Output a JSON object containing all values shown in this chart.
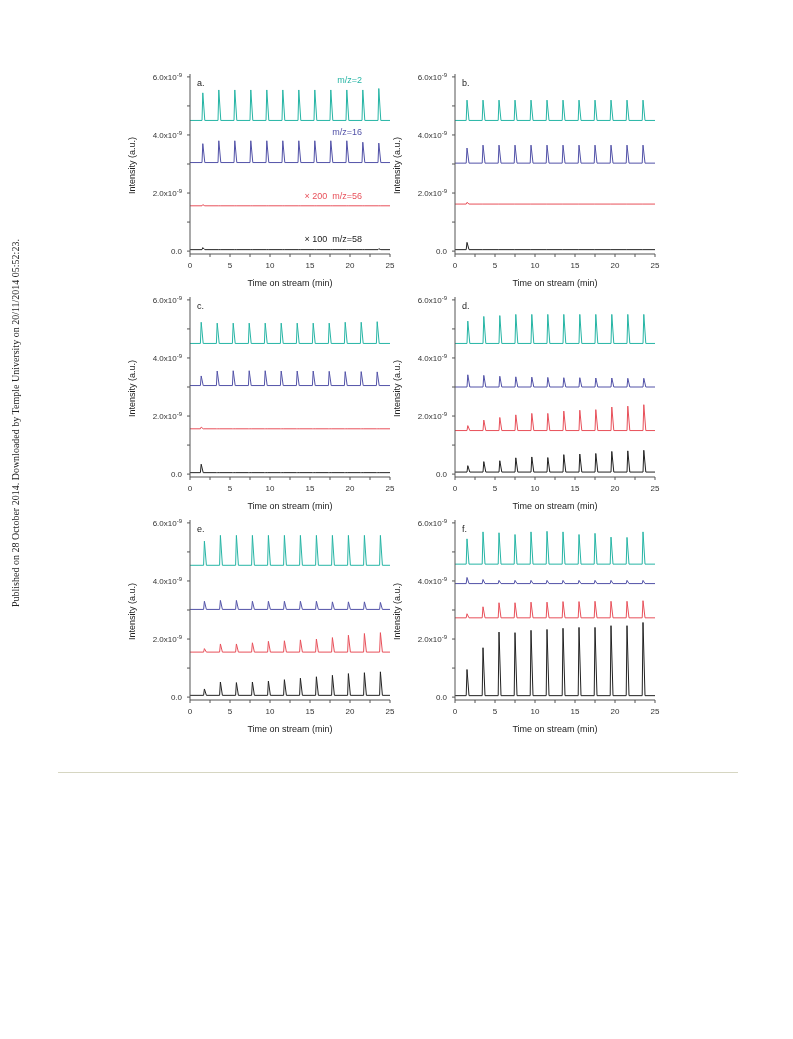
{
  "chart_data": [
    {
      "type": "line",
      "title": "a.",
      "xlabel": "Time on stream (min)",
      "ylabel": "Intensity (a.u.)",
      "marker": "none",
      "line_style": "solid",
      "grid": false,
      "legend": false,
      "annotations": [
        "Published on 28 October 2014. Downloaded by Temple University on 20/11/2014 05:52:23."
      ],
      "xlim": [
        0,
        25
      ],
      "xticks": [
        0,
        {
          "value": 2.5,
          "label": null
        },
        5,
        {
          "value": 7.5,
          "label": null
        },
        10,
        {
          "value": 12.5,
          "label": null
        },
        15,
        {
          "value": 17.5,
          "label": null
        },
        20,
        {
          "value": 22.5,
          "label": null
        },
        25
      ],
      "ylim": [
        -1e-10,
        6.1e-09
      ],
      "yticks": [
        {
          "value": 0,
          "label": "0.0"
        },
        {
          "value": 1e-09,
          "label": null
        },
        {
          "value": 2e-09,
          "label": "2.0x10$^{-9}$"
        },
        {
          "value": 3e-09,
          "label": null
        },
        {
          "value": 4e-09,
          "label": "4.0x10$^{-9}$"
        },
        {
          "value": 5e-09,
          "label": null
        },
        {
          "value": 6e-09,
          "label": "6.0x10$^{-9}$"
        }
      ],
      "x": [
        0,
        1.5,
        1.6,
        1.85,
        3.5,
        3.6,
        3.85,
        5.5,
        5.6,
        5.85,
        7.5,
        7.6,
        7.85,
        9.5,
        9.6,
        9.85,
        11.5,
        11.6,
        11.85,
        13.5,
        13.6,
        13.85,
        15.5,
        15.6,
        15.85,
        17.5,
        17.6,
        17.85,
        19.5,
        19.6,
        19.85,
        21.5,
        21.6,
        21.85,
        23.5,
        23.6,
        23.85,
        25
      ],
      "series": [
        {
          "name": "m/z=2",
          "color": "#26b5a5",
          "values": [
            4.5e-09,
            4.5e-09,
            5.45e-09,
            4.5e-09,
            4.5e-09,
            5.55e-09,
            4.5e-09,
            4.5e-09,
            5.55e-09,
            4.5e-09,
            4.5e-09,
            5.55e-09,
            4.5e-09,
            4.5e-09,
            5.55e-09,
            4.5e-09,
            4.5e-09,
            5.55e-09,
            4.5e-09,
            4.5e-09,
            5.55e-09,
            4.5e-09,
            4.5e-09,
            5.55e-09,
            4.5e-09,
            4.5e-09,
            5.55e-09,
            4.5e-09,
            4.5e-09,
            5.55e-09,
            4.5e-09,
            4.5e-09,
            5.55e-09,
            4.5e-09,
            4.5e-09,
            5.6e-09,
            4.5e-09,
            4.5e-09
          ]
        },
        {
          "name": "m/z=16",
          "color": "#5252a8",
          "values": [
            3.05e-09,
            3.05e-09,
            3.7e-09,
            3.05e-09,
            3.05e-09,
            3.8e-09,
            3.05e-09,
            3.05e-09,
            3.8e-09,
            3.05e-09,
            3.05e-09,
            3.8e-09,
            3.05e-09,
            3.05e-09,
            3.8e-09,
            3.05e-09,
            3.05e-09,
            3.8e-09,
            3.05e-09,
            3.05e-09,
            3.8e-09,
            3.05e-09,
            3.05e-09,
            3.8e-09,
            3.05e-09,
            3.05e-09,
            3.8e-09,
            3.05e-09,
            3.05e-09,
            3.8e-09,
            3.05e-09,
            3.05e-09,
            3.75e-09,
            3.05e-09,
            3.05e-09,
            3.72e-09,
            3.05e-09,
            3.05e-09
          ]
        },
        {
          "name": "× 200  m/z=56",
          "color": "#e8505a",
          "values": [
            1.56e-09,
            1.56e-09,
            1.6e-09,
            1.56e-09,
            1.56e-09,
            1.56e-09,
            1.56e-09,
            1.56e-09,
            1.56e-09,
            1.56e-09,
            1.56e-09,
            1.56e-09,
            1.56e-09,
            1.56e-09,
            1.56e-09,
            1.56e-09,
            1.56e-09,
            1.56e-09,
            1.56e-09,
            1.56e-09,
            1.56e-09,
            1.56e-09,
            1.56e-09,
            1.56e-09,
            1.56e-09,
            1.56e-09,
            1.56e-09,
            1.56e-09,
            1.56e-09,
            1.56e-09,
            1.56e-09,
            1.56e-09,
            1.56e-09,
            1.56e-09,
            1.56e-09,
            1.56e-09,
            1.56e-09,
            1.56e-09
          ]
        },
        {
          "name": "× 100  m/z=58",
          "color": "#222222",
          "values": [
            5e-11,
            5e-11,
            1.2e-10,
            5e-11,
            5e-11,
            5e-11,
            5e-11,
            5e-11,
            5e-11,
            5e-11,
            5e-11,
            5e-11,
            5e-11,
            5e-11,
            5e-11,
            5e-11,
            5e-11,
            5e-11,
            5e-11,
            5e-11,
            5e-11,
            5e-11,
            5e-11,
            5e-11,
            5e-11,
            5e-11,
            5e-11,
            5e-11,
            5e-11,
            5e-11,
            5e-11,
            5e-11,
            5e-11,
            5e-11,
            5e-11,
            8e-11,
            5e-11,
            5e-11
          ]
        }
      ]
    },
    {
      "type": "line",
      "title": "b.",
      "xlabel": "Time on stream (min)",
      "ylabel": "Intensity (a.u.)",
      "marker": "none",
      "line_style": "solid",
      "grid": false,
      "legend": false,
      "xlim": [
        0,
        25
      ],
      "xticks": [
        0,
        {
          "value": 2.5,
          "label": null
        },
        5,
        {
          "value": 7.5,
          "label": null
        },
        10,
        {
          "value": 12.5,
          "label": null
        },
        15,
        {
          "value": 17.5,
          "label": null
        },
        20,
        {
          "value": 22.5,
          "label": null
        },
        25
      ],
      "ylim": [
        -1e-10,
        6.1e-09
      ],
      "yticks": [
        {
          "value": 0,
          "label": "0.0"
        },
        {
          "value": 1e-09,
          "label": null
        },
        {
          "value": 2e-09,
          "label": "2.0x10$^{-9}$"
        },
        {
          "value": 3e-09,
          "label": null
        },
        {
          "value": 4e-09,
          "label": "4.0x10$^{-9}$"
        },
        {
          "value": 5e-09,
          "label": null
        },
        {
          "value": 6e-09,
          "label": "6.0x10$^{-9}$"
        }
      ],
      "x": [
        0,
        1.4,
        1.5,
        1.75,
        3.4,
        3.5,
        3.75,
        5.4,
        5.5,
        5.75,
        7.4,
        7.5,
        7.75,
        9.4,
        9.5,
        9.75,
        11.4,
        11.5,
        11.75,
        13.4,
        13.5,
        13.75,
        15.4,
        15.5,
        15.75,
        17.4,
        17.5,
        17.75,
        19.4,
        19.5,
        19.75,
        21.4,
        21.5,
        21.75,
        23.4,
        23.5,
        23.75,
        25
      ],
      "series": [
        {
          "color": "#26b5a5",
          "values": [
            4.5e-09,
            4.5e-09,
            5.2e-09,
            4.5e-09,
            4.5e-09,
            5.2e-09,
            4.5e-09,
            4.5e-09,
            5.2e-09,
            4.5e-09,
            4.5e-09,
            5.2e-09,
            4.5e-09,
            4.5e-09,
            5.2e-09,
            4.5e-09,
            4.5e-09,
            5.2e-09,
            4.5e-09,
            4.5e-09,
            5.2e-09,
            4.5e-09,
            4.5e-09,
            5.2e-09,
            4.5e-09,
            4.5e-09,
            5.2e-09,
            4.5e-09,
            4.5e-09,
            5.2e-09,
            4.5e-09,
            4.5e-09,
            5.2e-09,
            4.5e-09,
            4.5e-09,
            5.2e-09,
            4.5e-09,
            4.5e-09
          ]
        },
        {
          "color": "#5252a8",
          "values": [
            3.03e-09,
            3.03e-09,
            3.55e-09,
            3.03e-09,
            3.03e-09,
            3.65e-09,
            3.03e-09,
            3.03e-09,
            3.65e-09,
            3.03e-09,
            3.03e-09,
            3.65e-09,
            3.03e-09,
            3.03e-09,
            3.65e-09,
            3.03e-09,
            3.03e-09,
            3.65e-09,
            3.03e-09,
            3.03e-09,
            3.65e-09,
            3.03e-09,
            3.03e-09,
            3.65e-09,
            3.03e-09,
            3.03e-09,
            3.65e-09,
            3.03e-09,
            3.03e-09,
            3.65e-09,
            3.03e-09,
            3.03e-09,
            3.65e-09,
            3.03e-09,
            3.03e-09,
            3.65e-09,
            3.03e-09,
            3.03e-09
          ]
        },
        {
          "color": "#e8505a",
          "values": [
            1.62e-09,
            1.62e-09,
            1.68e-09,
            1.62e-09,
            1.62e-09,
            1.62e-09,
            1.62e-09,
            1.62e-09,
            1.62e-09,
            1.62e-09,
            1.62e-09,
            1.62e-09,
            1.62e-09,
            1.62e-09,
            1.62e-09,
            1.62e-09,
            1.62e-09,
            1.62e-09,
            1.62e-09,
            1.62e-09,
            1.62e-09,
            1.62e-09,
            1.62e-09,
            1.62e-09,
            1.62e-09,
            1.62e-09,
            1.62e-09,
            1.62e-09,
            1.62e-09,
            1.62e-09,
            1.62e-09,
            1.62e-09,
            1.62e-09,
            1.62e-09,
            1.62e-09,
            1.62e-09,
            1.62e-09,
            1.62e-09
          ]
        },
        {
          "color": "#222222",
          "values": [
            5e-11,
            5e-11,
            3e-10,
            5e-11,
            5e-11,
            5e-11,
            5e-11,
            5e-11,
            5e-11,
            5e-11,
            5e-11,
            5e-11,
            5e-11,
            5e-11,
            5e-11,
            5e-11,
            5e-11,
            5e-11,
            5e-11,
            5e-11,
            5e-11,
            5e-11,
            5e-11,
            5e-11,
            5e-11,
            5e-11,
            5e-11,
            5e-11,
            5e-11,
            5e-11,
            5e-11,
            5e-11,
            5e-11,
            5e-11,
            5e-11,
            5e-11,
            5e-11,
            5e-11
          ]
        }
      ]
    },
    {
      "type": "line",
      "title": "c.",
      "xlabel": "Time on stream (min)",
      "ylabel": "Intensity (a.u.)",
      "marker": "none",
      "line_style": "solid",
      "grid": false,
      "legend": false,
      "xlim": [
        0,
        25
      ],
      "xticks": [
        0,
        {
          "value": 2.5,
          "label": null
        },
        5,
        {
          "value": 7.5,
          "label": null
        },
        10,
        {
          "value": 12.5,
          "label": null
        },
        15,
        {
          "value": 17.5,
          "label": null
        },
        20,
        {
          "value": 22.5,
          "label": null
        },
        25
      ],
      "ylim": [
        -1e-10,
        6.1e-09
      ],
      "yticks": [
        {
          "value": 0,
          "label": "0.0"
        },
        {
          "value": 1e-09,
          "label": null
        },
        {
          "value": 2e-09,
          "label": "2.0x10$^{-9}$"
        },
        {
          "value": 3e-09,
          "label": null
        },
        {
          "value": 4e-09,
          "label": "4.0x10$^{-9}$"
        },
        {
          "value": 5e-09,
          "label": null
        },
        {
          "value": 6e-09,
          "label": "6.0x10$^{-9}$"
        }
      ],
      "x": [
        0,
        1.3,
        1.4,
        1.65,
        3.3,
        3.4,
        3.65,
        5.3,
        5.4,
        5.65,
        7.3,
        7.4,
        7.65,
        9.3,
        9.4,
        9.65,
        11.3,
        11.4,
        11.65,
        13.3,
        13.4,
        13.65,
        15.3,
        15.4,
        15.65,
        17.3,
        17.4,
        17.65,
        19.3,
        19.4,
        19.65,
        21.3,
        21.4,
        21.65,
        23.3,
        23.4,
        23.65,
        25
      ],
      "series": [
        {
          "color": "#26b5a5",
          "values": [
            4.5e-09,
            4.5e-09,
            5.23e-09,
            4.5e-09,
            4.5e-09,
            5.2e-09,
            4.5e-09,
            4.5e-09,
            5.2e-09,
            4.5e-09,
            4.5e-09,
            5.2e-09,
            4.5e-09,
            4.5e-09,
            5.2e-09,
            4.5e-09,
            4.5e-09,
            5.2e-09,
            4.5e-09,
            4.5e-09,
            5.2e-09,
            4.5e-09,
            4.5e-09,
            5.2e-09,
            4.5e-09,
            4.5e-09,
            5.2e-09,
            4.5e-09,
            4.5e-09,
            5.23e-09,
            4.5e-09,
            4.5e-09,
            5.23e-09,
            4.5e-09,
            4.5e-09,
            5.25e-09,
            4.5e-09,
            4.5e-09
          ]
        },
        {
          "color": "#5252a8",
          "values": [
            3.05e-09,
            3.05e-09,
            3.38e-09,
            3.05e-09,
            3.05e-09,
            3.55e-09,
            3.05e-09,
            3.05e-09,
            3.56e-09,
            3.05e-09,
            3.05e-09,
            3.56e-09,
            3.05e-09,
            3.05e-09,
            3.56e-09,
            3.05e-09,
            3.05e-09,
            3.55e-09,
            3.05e-09,
            3.05e-09,
            3.55e-09,
            3.05e-09,
            3.05e-09,
            3.55e-09,
            3.05e-09,
            3.05e-09,
            3.54e-09,
            3.05e-09,
            3.05e-09,
            3.53e-09,
            3.05e-09,
            3.05e-09,
            3.53e-09,
            3.05e-09,
            3.05e-09,
            3.52e-09,
            3.05e-09,
            3.05e-09
          ]
        },
        {
          "color": "#e8505a",
          "values": [
            1.56e-09,
            1.56e-09,
            1.62e-09,
            1.56e-09,
            1.56e-09,
            1.56e-09,
            1.56e-09,
            1.56e-09,
            1.56e-09,
            1.56e-09,
            1.56e-09,
            1.56e-09,
            1.56e-09,
            1.56e-09,
            1.56e-09,
            1.56e-09,
            1.56e-09,
            1.56e-09,
            1.56e-09,
            1.56e-09,
            1.56e-09,
            1.56e-09,
            1.56e-09,
            1.56e-09,
            1.56e-09,
            1.56e-09,
            1.56e-09,
            1.56e-09,
            1.56e-09,
            1.56e-09,
            1.56e-09,
            1.56e-09,
            1.56e-09,
            1.56e-09,
            1.56e-09,
            1.56e-09,
            1.56e-09,
            1.56e-09
          ]
        },
        {
          "color": "#222222",
          "values": [
            5e-11,
            5e-11,
            3.4e-10,
            5e-11,
            5e-11,
            5e-11,
            5e-11,
            5e-11,
            5e-11,
            5e-11,
            5e-11,
            5e-11,
            5e-11,
            5e-11,
            5e-11,
            5e-11,
            5e-11,
            5e-11,
            5e-11,
            5e-11,
            5e-11,
            5e-11,
            5e-11,
            5e-11,
            5e-11,
            5e-11,
            5e-11,
            5e-11,
            5e-11,
            5e-11,
            5e-11,
            5e-11,
            5e-11,
            5e-11,
            5e-11,
            5e-11,
            5e-11,
            5e-11
          ]
        }
      ]
    },
    {
      "type": "line",
      "title": "d.",
      "xlabel": "Time on stream (min)",
      "ylabel": "Intensity (a.u.)",
      "marker": "none",
      "line_style": "solid",
      "grid": false,
      "legend": false,
      "xlim": [
        0,
        25
      ],
      "xticks": [
        0,
        {
          "value": 2.5,
          "label": null
        },
        5,
        {
          "value": 7.5,
          "label": null
        },
        10,
        {
          "value": 12.5,
          "label": null
        },
        15,
        {
          "value": 17.5,
          "label": null
        },
        20,
        {
          "value": 22.5,
          "label": null
        },
        25
      ],
      "ylim": [
        -1e-10,
        6.1e-09
      ],
      "yticks": [
        {
          "value": 0,
          "label": "0.0"
        },
        {
          "value": 1e-09,
          "label": null
        },
        {
          "value": 2e-09,
          "label": "2.0x10$^{-9}$"
        },
        {
          "value": 3e-09,
          "label": null
        },
        {
          "value": 4e-09,
          "label": "4.0x10$^{-9}$"
        },
        {
          "value": 5e-09,
          "label": null
        },
        {
          "value": 6e-09,
          "label": "6.0x10$^{-9}$"
        }
      ],
      "x": [
        0,
        1.5,
        1.6,
        1.85,
        3.5,
        3.6,
        3.85,
        5.5,
        5.6,
        5.85,
        7.5,
        7.6,
        7.85,
        9.5,
        9.6,
        9.85,
        11.5,
        11.6,
        11.85,
        13.5,
        13.6,
        13.85,
        15.5,
        15.6,
        15.85,
        17.5,
        17.6,
        17.85,
        19.5,
        19.6,
        19.85,
        21.5,
        21.6,
        21.85,
        23.5,
        23.6,
        23.85,
        25
      ],
      "series": [
        {
          "color": "#26b5a5",
          "values": [
            4.5e-09,
            4.5e-09,
            5.27e-09,
            4.5e-09,
            4.5e-09,
            5.43e-09,
            4.5e-09,
            4.5e-09,
            5.46e-09,
            4.5e-09,
            4.5e-09,
            5.5e-09,
            4.5e-09,
            4.5e-09,
            5.5e-09,
            4.5e-09,
            4.5e-09,
            5.5e-09,
            4.5e-09,
            4.5e-09,
            5.5e-09,
            4.5e-09,
            4.5e-09,
            5.5e-09,
            4.5e-09,
            4.5e-09,
            5.5e-09,
            4.5e-09,
            4.5e-09,
            5.5e-09,
            4.5e-09,
            4.5e-09,
            5.5e-09,
            4.5e-09,
            4.5e-09,
            5.5e-09,
            4.5e-09,
            4.5e-09
          ]
        },
        {
          "color": "#5252a8",
          "values": [
            3e-09,
            3e-09,
            3.42e-09,
            3e-09,
            3e-09,
            3.4e-09,
            3e-09,
            3e-09,
            3.37e-09,
            3e-09,
            3e-09,
            3.35e-09,
            3e-09,
            3e-09,
            3.34e-09,
            3e-09,
            3e-09,
            3.33e-09,
            3e-09,
            3e-09,
            3.32e-09,
            3e-09,
            3e-09,
            3.32e-09,
            3e-09,
            3e-09,
            3.31e-09,
            3e-09,
            3e-09,
            3.31e-09,
            3e-09,
            3e-09,
            3.3e-09,
            3e-09,
            3e-09,
            3.3e-09,
            3e-09,
            3e-09
          ]
        },
        {
          "color": "#e8505a",
          "values": [
            1.5e-09,
            1.5e-09,
            1.67e-09,
            1.5e-09,
            1.5e-09,
            1.86e-09,
            1.5e-09,
            1.5e-09,
            1.95e-09,
            1.5e-09,
            1.5e-09,
            2.04e-09,
            1.5e-09,
            1.5e-09,
            2.09e-09,
            1.5e-09,
            1.5e-09,
            2.09e-09,
            1.5e-09,
            1.5e-09,
            2.17e-09,
            1.5e-09,
            1.5e-09,
            2.2e-09,
            1.5e-09,
            1.5e-09,
            2.22e-09,
            1.5e-09,
            1.5e-09,
            2.31e-09,
            1.5e-09,
            1.5e-09,
            2.34e-09,
            1.5e-09,
            1.5e-09,
            2.39e-09,
            1.5e-09,
            1.5e-09
          ]
        },
        {
          "color": "#222222",
          "values": [
            7e-11,
            7e-11,
            2.9e-10,
            7e-11,
            7e-11,
            4.3e-10,
            7e-11,
            7e-11,
            4.6e-10,
            7e-11,
            7e-11,
            5.6e-10,
            7e-11,
            7e-11,
            5.9e-10,
            7e-11,
            7e-11,
            5.7e-10,
            7e-11,
            7e-11,
            6.7e-10,
            7e-11,
            7e-11,
            6.9e-10,
            7e-11,
            7e-11,
            7.1e-10,
            7e-11,
            7e-11,
            7.8e-10,
            7e-11,
            7e-11,
            8e-10,
            7e-11,
            7e-11,
            8.2e-10,
            7e-11,
            7e-11
          ]
        }
      ]
    },
    {
      "type": "line",
      "title": "e.",
      "xlabel": "Time on stream (min)",
      "ylabel": "Intensity (a.u.)",
      "marker": "none",
      "line_style": "solid",
      "grid": false,
      "legend": false,
      "xlim": [
        0,
        25
      ],
      "xticks": [
        0,
        {
          "value": 2.5,
          "label": null
        },
        5,
        {
          "value": 7.5,
          "label": null
        },
        10,
        {
          "value": 12.5,
          "label": null
        },
        15,
        {
          "value": 17.5,
          "label": null
        },
        20,
        {
          "value": 22.5,
          "label": null
        },
        25
      ],
      "ylim": [
        -1e-10,
        6.1e-09
      ],
      "yticks": [
        {
          "value": 0,
          "label": "0.0"
        },
        {
          "value": 1e-09,
          "label": null
        },
        {
          "value": 2e-09,
          "label": "2.0x10$^{-9}$"
        },
        {
          "value": 3e-09,
          "label": null
        },
        {
          "value": 4e-09,
          "label": "4.0x10$^{-9}$"
        },
        {
          "value": 5e-09,
          "label": null
        },
        {
          "value": 6e-09,
          "label": "6.0x10$^{-9}$"
        }
      ],
      "x": [
        0,
        1.7,
        1.8,
        2.05,
        3.7,
        3.8,
        4.05,
        5.7,
        5.8,
        6.05,
        7.7,
        7.8,
        8.05,
        9.7,
        9.8,
        10.05,
        11.7,
        11.8,
        12.05,
        13.7,
        13.8,
        14.05,
        15.7,
        15.8,
        16.05,
        17.7,
        17.8,
        18.05,
        19.7,
        19.8,
        20.05,
        21.7,
        21.8,
        22.05,
        23.7,
        23.8,
        24.05,
        25
      ],
      "series": [
        {
          "color": "#26b5a5",
          "values": [
            4.54e-09,
            4.54e-09,
            5.37e-09,
            4.54e-09,
            4.54e-09,
            5.57e-09,
            4.54e-09,
            4.54e-09,
            5.57e-09,
            4.54e-09,
            4.54e-09,
            5.57e-09,
            4.54e-09,
            4.54e-09,
            5.57e-09,
            4.54e-09,
            4.54e-09,
            5.57e-09,
            4.54e-09,
            4.54e-09,
            5.57e-09,
            4.54e-09,
            4.54e-09,
            5.57e-09,
            4.54e-09,
            4.54e-09,
            5.57e-09,
            4.54e-09,
            4.54e-09,
            5.57e-09,
            4.54e-09,
            4.54e-09,
            5.57e-09,
            4.54e-09,
            4.54e-09,
            5.57e-09,
            4.54e-09,
            4.54e-09
          ]
        },
        {
          "color": "#5252a8",
          "values": [
            3.02e-09,
            3.02e-09,
            3.3e-09,
            3.02e-09,
            3.02e-09,
            3.33e-09,
            3.02e-09,
            3.02e-09,
            3.33e-09,
            3.02e-09,
            3.02e-09,
            3.3e-09,
            3.02e-09,
            3.02e-09,
            3.3e-09,
            3.02e-09,
            3.02e-09,
            3.3e-09,
            3.02e-09,
            3.02e-09,
            3.3e-09,
            3.02e-09,
            3.02e-09,
            3.3e-09,
            3.02e-09,
            3.02e-09,
            3.28e-09,
            3.02e-09,
            3.02e-09,
            3.28e-09,
            3.02e-09,
            3.02e-09,
            3.28e-09,
            3.02e-09,
            3.02e-09,
            3.26e-09,
            3.02e-09,
            3.02e-09
          ]
        },
        {
          "color": "#e8505a",
          "values": [
            1.55e-09,
            1.55e-09,
            1.67e-09,
            1.55e-09,
            1.55e-09,
            1.83e-09,
            1.55e-09,
            1.55e-09,
            1.83e-09,
            1.55e-09,
            1.55e-09,
            1.87e-09,
            1.55e-09,
            1.55e-09,
            1.92e-09,
            1.55e-09,
            1.55e-09,
            1.94e-09,
            1.55e-09,
            1.55e-09,
            1.97e-09,
            1.55e-09,
            1.55e-09,
            2e-09,
            1.55e-09,
            1.55e-09,
            2.05e-09,
            1.55e-09,
            1.55e-09,
            2.13e-09,
            1.55e-09,
            1.55e-09,
            2.19e-09,
            1.55e-09,
            1.55e-09,
            2.22e-09,
            1.55e-09,
            1.55e-09
          ]
        },
        {
          "color": "#222222",
          "values": [
            6e-11,
            6e-11,
            2.8e-10,
            6e-11,
            6e-11,
            5.2e-10,
            6e-11,
            6e-11,
            5e-10,
            6e-11,
            6e-11,
            5.2e-10,
            6e-11,
            6e-11,
            5.5e-10,
            6e-11,
            6e-11,
            6e-10,
            6e-11,
            6e-11,
            6.5e-10,
            6e-11,
            6e-11,
            7e-10,
            6e-11,
            6e-11,
            7.5e-10,
            6e-11,
            6e-11,
            8.1e-10,
            6e-11,
            6e-11,
            8.4e-10,
            6e-11,
            6e-11,
            8.7e-10,
            6e-11,
            6e-11
          ]
        }
      ]
    },
    {
      "type": "line",
      "title": "f.",
      "xlabel": "Time on stream (min)",
      "ylabel": "Intensity (a.u.)",
      "marker": "none",
      "line_style": "solid",
      "grid": false,
      "legend": false,
      "xlim": [
        0,
        25
      ],
      "xticks": [
        0,
        {
          "value": 2.5,
          "label": null
        },
        5,
        {
          "value": 7.5,
          "label": null
        },
        10,
        {
          "value": 12.5,
          "label": null
        },
        15,
        {
          "value": 17.5,
          "label": null
        },
        20,
        {
          "value": 22.5,
          "label": null
        },
        25
      ],
      "ylim": [
        -1e-10,
        6.1e-09
      ],
      "yticks": [
        {
          "value": 0,
          "label": "0.0"
        },
        {
          "value": 1e-09,
          "label": null
        },
        {
          "value": 2e-09,
          "label": "2.0x10$^{-9}$"
        },
        {
          "value": 3e-09,
          "label": null
        },
        {
          "value": 4e-09,
          "label": "4.0x10$^{-9}$"
        },
        {
          "value": 5e-09,
          "label": null
        },
        {
          "value": 6e-09,
          "label": "6.0x10$^{-9}$"
        }
      ],
      "x": [
        0,
        1.4,
        1.5,
        1.75,
        3.4,
        3.5,
        3.75,
        5.4,
        5.5,
        5.75,
        7.4,
        7.5,
        7.75,
        9.4,
        9.5,
        9.75,
        11.4,
        11.5,
        11.75,
        13.4,
        13.5,
        13.75,
        15.4,
        15.5,
        15.75,
        17.4,
        17.5,
        17.75,
        19.4,
        19.5,
        19.75,
        21.4,
        21.5,
        21.75,
        23.4,
        23.5,
        23.75,
        25
      ],
      "series": [
        {
          "color": "#26b5a5",
          "values": [
            4.58e-09,
            4.58e-09,
            5.45e-09,
            4.58e-09,
            4.58e-09,
            5.69e-09,
            4.58e-09,
            4.58e-09,
            5.66e-09,
            4.58e-09,
            4.58e-09,
            5.6e-09,
            4.58e-09,
            4.58e-09,
            5.69e-09,
            4.58e-09,
            4.58e-09,
            5.71e-09,
            4.58e-09,
            4.58e-09,
            5.69e-09,
            4.58e-09,
            4.58e-09,
            5.6e-09,
            4.58e-09,
            4.58e-09,
            5.64e-09,
            4.58e-09,
            4.58e-09,
            5.51e-09,
            4.58e-09,
            4.58e-09,
            5.5e-09,
            4.58e-09,
            4.58e-09,
            5.69e-09,
            4.58e-09,
            4.58e-09
          ]
        },
        {
          "color": "#5252a8",
          "values": [
            3.91e-09,
            3.91e-09,
            4.12e-09,
            3.91e-09,
            3.91e-09,
            4.05e-09,
            3.91e-09,
            3.91e-09,
            4.02e-09,
            3.91e-09,
            3.91e-09,
            4.02e-09,
            3.91e-09,
            3.91e-09,
            4.02e-09,
            3.91e-09,
            3.91e-09,
            4.02e-09,
            3.91e-09,
            3.91e-09,
            4.02e-09,
            3.91e-09,
            3.91e-09,
            4.02e-09,
            3.91e-09,
            3.91e-09,
            4.02e-09,
            3.91e-09,
            3.91e-09,
            4.02e-09,
            3.91e-09,
            3.91e-09,
            4.02e-09,
            3.91e-09,
            3.91e-09,
            4.02e-09,
            3.91e-09,
            3.91e-09
          ]
        },
        {
          "color": "#e8505a",
          "values": [
            2.73e-09,
            2.73e-09,
            2.87e-09,
            2.73e-09,
            2.73e-09,
            3.11e-09,
            2.73e-09,
            2.73e-09,
            3.25e-09,
            2.73e-09,
            2.73e-09,
            3.25e-09,
            2.73e-09,
            2.73e-09,
            3.27e-09,
            2.73e-09,
            2.73e-09,
            3.27e-09,
            2.73e-09,
            2.73e-09,
            3.29e-09,
            2.73e-09,
            2.73e-09,
            3.29e-09,
            2.73e-09,
            2.73e-09,
            3.3e-09,
            2.73e-09,
            2.73e-09,
            3.3e-09,
            2.73e-09,
            2.73e-09,
            3.3e-09,
            2.73e-09,
            2.73e-09,
            3.32e-09,
            2.73e-09,
            2.73e-09
          ]
        },
        {
          "color": "#222222",
          "values": [
            5e-11,
            5e-11,
            9.5e-10,
            5e-11,
            5e-11,
            1.7e-09,
            5e-11,
            5e-11,
            2.24e-09,
            5e-11,
            5e-11,
            2.22e-09,
            5e-11,
            5e-11,
            2.3e-09,
            5e-11,
            5e-11,
            2.33e-09,
            5e-11,
            5e-11,
            2.37e-09,
            5e-11,
            5e-11,
            2.4e-09,
            5e-11,
            5e-11,
            2.4e-09,
            5e-11,
            5e-11,
            2.46e-09,
            5e-11,
            5e-11,
            2.46e-09,
            5e-11,
            5e-11,
            2.57e-09,
            5e-11,
            5e-11
          ]
        }
      ]
    }
  ]
}
